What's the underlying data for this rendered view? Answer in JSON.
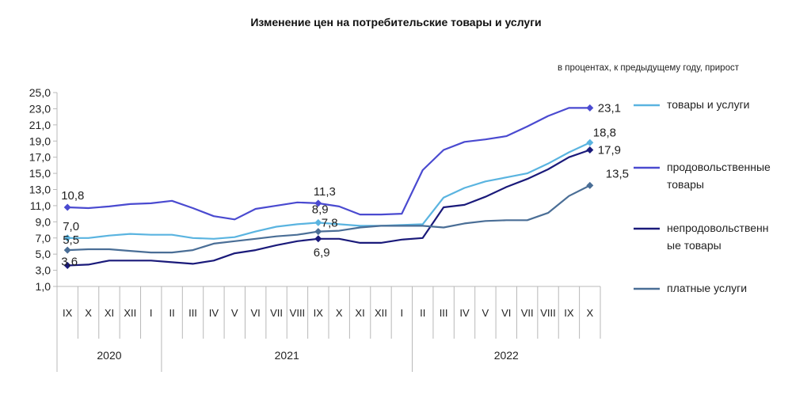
{
  "chart_data": {
    "type": "line",
    "title": "Изменение цен на потребительские товары и услуги",
    "subtitle": "в процентах, к предыдущему году, прирост",
    "categories": [
      "IX",
      "X",
      "XI",
      "XII",
      "I",
      "II",
      "III",
      "IV",
      "V",
      "VI",
      "VII",
      "VIII",
      "IX",
      "X",
      "XI",
      "XII",
      "I",
      "II",
      "III",
      "IV",
      "V",
      "VI",
      "VII",
      "VIII",
      "IX",
      "X"
    ],
    "year_groups": [
      {
        "label": "2020",
        "start": 0,
        "end": 4
      },
      {
        "label": "2021",
        "start": 5,
        "end": 16
      },
      {
        "label": "2022",
        "start": 17,
        "end": 25
      }
    ],
    "ylim": [
      1.0,
      25.0
    ],
    "ytick_step": 2.0,
    "yticks": [
      "1,0",
      "3,0",
      "5,0",
      "7,0",
      "9,0",
      "11,0",
      "13,0",
      "15,0",
      "17,0",
      "19,0",
      "21,0",
      "23,0",
      "25,0"
    ],
    "grid": false,
    "legend_position": "right",
    "series": [
      {
        "name": "товары и услуги",
        "color": "#5ab4e0",
        "values": [
          7.0,
          7.0,
          7.3,
          7.5,
          7.4,
          7.4,
          7.0,
          6.9,
          7.1,
          7.8,
          8.4,
          8.7,
          8.9,
          8.7,
          8.5,
          8.5,
          8.6,
          8.7,
          12.0,
          13.2,
          14.0,
          14.5,
          15.0,
          16.2,
          17.6,
          18.8
        ],
        "markers": [
          0,
          12,
          25
        ],
        "labels": [
          {
            "index": 0,
            "text": "7,0"
          },
          {
            "index": 12,
            "text": "8,9"
          },
          {
            "index": 25,
            "text": "18,8"
          }
        ]
      },
      {
        "name": "продовольственные товары",
        "color": "#4a4ad0",
        "values": [
          10.8,
          10.7,
          10.9,
          11.2,
          11.3,
          11.6,
          10.7,
          9.7,
          9.3,
          10.6,
          11.0,
          11.4,
          11.3,
          10.9,
          9.9,
          9.9,
          10.0,
          15.4,
          17.9,
          18.9,
          19.2,
          19.6,
          20.8,
          22.1,
          23.1,
          23.1
        ],
        "markers": [
          0,
          12,
          25
        ],
        "labels": [
          {
            "index": 0,
            "text": "10,8"
          },
          {
            "index": 12,
            "text": "11,3"
          },
          {
            "index": 25,
            "text": "23,1"
          }
        ]
      },
      {
        "name": "непродовольственные товары",
        "color": "#1a1a7a",
        "values": [
          3.6,
          3.7,
          4.2,
          4.2,
          4.2,
          4.0,
          3.8,
          4.2,
          5.1,
          5.5,
          6.1,
          6.6,
          6.9,
          6.9,
          6.4,
          6.4,
          6.8,
          7.0,
          10.8,
          11.1,
          12.1,
          13.3,
          14.3,
          15.5,
          17.0,
          17.9
        ],
        "markers": [
          0,
          12,
          25
        ],
        "labels": [
          {
            "index": 0,
            "text": "3,6"
          },
          {
            "index": 12,
            "text": "6,9"
          },
          {
            "index": 25,
            "text": "17,9"
          }
        ]
      },
      {
        "name": "платные услуги",
        "color": "#4a6e96",
        "values": [
          5.5,
          5.6,
          5.6,
          5.4,
          5.2,
          5.2,
          5.5,
          6.3,
          6.6,
          6.9,
          7.2,
          7.4,
          7.8,
          7.9,
          8.3,
          8.5,
          8.5,
          8.5,
          8.3,
          8.8,
          9.1,
          9.2,
          9.2,
          10.1,
          12.2,
          13.5
        ],
        "markers": [
          0,
          12,
          25
        ],
        "labels": [
          {
            "index": 0,
            "text": "5,5"
          },
          {
            "index": 12,
            "text": "7,8"
          },
          {
            "index": 25,
            "text": "13,5"
          }
        ]
      }
    ],
    "legend": [
      {
        "lines": [
          "товары и услуги"
        ],
        "series": 0
      },
      {
        "lines": [
          "продовольственные",
          "товары"
        ],
        "series": 1
      },
      {
        "lines": [
          "непродовольственн",
          "ые товары"
        ],
        "series": 2
      },
      {
        "lines": [
          "платные услуги"
        ],
        "series": 3
      }
    ]
  }
}
